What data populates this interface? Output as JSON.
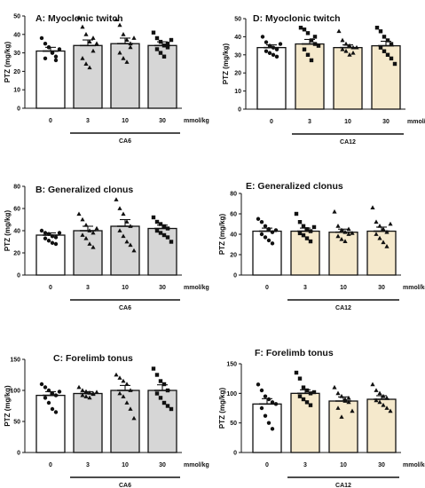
{
  "chart_data": [
    {
      "type": "bar",
      "panel": "A",
      "title": "A: Myoclonic twitch",
      "ylabel": "PTZ (mg/kg)",
      "categories": [
        "0",
        "3",
        "10",
        "30"
      ],
      "unit_label": "mmol/kg",
      "group_label": "CA6",
      "ylim": [
        0,
        50
      ],
      "yticks": [
        0,
        10,
        20,
        30,
        40,
        50
      ],
      "colors": [
        "#ffffff",
        "#d6d6d6",
        "#d6d6d6",
        "#d6d6d6"
      ],
      "markers": [
        "circle",
        "triangle",
        "triangle",
        "square"
      ],
      "values": [
        31,
        34,
        35,
        34
      ],
      "errors": [
        2,
        3,
        3,
        2
      ],
      "points": [
        [
          38,
          35,
          33,
          30,
          28,
          27,
          33,
          30,
          26,
          32
        ],
        [
          49,
          44,
          40,
          36,
          31,
          27,
          24,
          22,
          38,
          35
        ],
        [
          48,
          45,
          40,
          37,
          33,
          30,
          27,
          25,
          35,
          38
        ],
        [
          41,
          38,
          36,
          34,
          33,
          32,
          30,
          28,
          35,
          37
        ]
      ]
    },
    {
      "type": "bar",
      "panel": "B",
      "title": "B: Generalized clonus",
      "ylabel": "PTZ (mg/kg)",
      "categories": [
        "0",
        "3",
        "10",
        "30"
      ],
      "unit_label": "mmol/kg",
      "group_label": "CA6",
      "ylim": [
        0,
        80
      ],
      "yticks": [
        0,
        20,
        40,
        60,
        80
      ],
      "colors": [
        "#ffffff",
        "#d6d6d6",
        "#d6d6d6",
        "#d6d6d6"
      ],
      "markers": [
        "circle",
        "triangle",
        "triangle",
        "square"
      ],
      "values": [
        36,
        40,
        44,
        42
      ],
      "errors": [
        2,
        4,
        6,
        3
      ],
      "points": [
        [
          40,
          38,
          37,
          35,
          34,
          33,
          31,
          29,
          28,
          38
        ],
        [
          55,
          50,
          45,
          40,
          38,
          36,
          33,
          28,
          25,
          42
        ],
        [
          68,
          60,
          55,
          48,
          44,
          40,
          35,
          30,
          27,
          22
        ],
        [
          52,
          48,
          46,
          44,
          42,
          40,
          38,
          36,
          34,
          30
        ]
      ]
    },
    {
      "type": "bar",
      "panel": "C",
      "title": "C: Forelimb tonus",
      "ylabel": "PTZ (mg/kg)",
      "categories": [
        "0",
        "3",
        "10",
        "30"
      ],
      "unit_label": "mmol/kg",
      "group_label": "CA6",
      "ylim": [
        0,
        150
      ],
      "yticks": [
        0,
        50,
        100,
        150
      ],
      "colors": [
        "#ffffff",
        "#d6d6d6",
        "#d6d6d6",
        "#d6d6d6"
      ],
      "markers": [
        "circle",
        "triangle",
        "triangle",
        "square"
      ],
      "values": [
        92,
        95,
        100,
        100
      ],
      "errors": [
        6,
        3,
        8,
        9
      ],
      "points": [
        [
          110,
          105,
          100,
          95,
          92,
          88,
          80,
          70,
          65,
          98
        ],
        [
          105,
          100,
          98,
          96,
          94,
          92,
          90,
          88,
          95,
          97
        ],
        [
          125,
          120,
          115,
          110,
          100,
          95,
          90,
          80,
          70,
          55
        ],
        [
          135,
          125,
          115,
          110,
          100,
          95,
          88,
          80,
          75,
          70
        ]
      ]
    },
    {
      "type": "bar",
      "panel": "D",
      "title": "D: Myoclonic twitch",
      "ylabel": "PTZ (mg/kg)",
      "categories": [
        "0",
        "3",
        "10",
        "30"
      ],
      "unit_label": "mmol/kg",
      "group_label": "CA12",
      "ylim": [
        0,
        50
      ],
      "yticks": [
        0,
        10,
        20,
        30,
        40,
        50
      ],
      "colors": [
        "#ffffff",
        "#f5e9cc",
        "#f5e9cc",
        "#f5e9cc"
      ],
      "markers": [
        "circle",
        "square",
        "triangle",
        "square"
      ],
      "values": [
        34,
        36,
        34,
        35
      ],
      "errors": [
        1.5,
        2.5,
        1.5,
        2.5
      ],
      "points": [
        [
          40,
          37,
          35,
          34,
          33,
          32,
          31,
          30,
          29,
          36
        ],
        [
          45,
          44,
          42,
          38,
          36,
          33,
          30,
          27,
          40,
          35
        ],
        [
          43,
          38,
          36,
          35,
          34,
          33,
          32,
          30,
          31,
          34
        ],
        [
          45,
          43,
          40,
          38,
          36,
          34,
          32,
          30,
          28,
          25
        ]
      ]
    },
    {
      "type": "bar",
      "panel": "E",
      "title": "E: Generalized clonus",
      "ylabel": "PTZ (mg/kg)",
      "categories": [
        "0",
        "3",
        "10",
        "30"
      ],
      "unit_label": "mmol/kg",
      "group_label": "CA12",
      "ylim": [
        0,
        80
      ],
      "yticks": [
        0,
        20,
        40,
        60,
        80
      ],
      "colors": [
        "#ffffff",
        "#f5e9cc",
        "#f5e9cc",
        "#f5e9cc"
      ],
      "markers": [
        "circle",
        "square",
        "triangle",
        "triangle"
      ],
      "values": [
        43,
        43,
        42,
        43
      ],
      "errors": [
        3,
        3,
        3,
        4
      ],
      "points": [
        [
          55,
          52,
          48,
          45,
          42,
          40,
          37,
          34,
          31,
          44
        ],
        [
          60,
          52,
          48,
          45,
          43,
          41,
          39,
          36,
          33,
          47
        ],
        [
          62,
          48,
          44,
          42,
          40,
          38,
          35,
          33,
          45,
          41
        ],
        [
          66,
          52,
          48,
          45,
          42,
          40,
          36,
          32,
          28,
          50
        ]
      ]
    },
    {
      "type": "bar",
      "panel": "F",
      "title": "F: Forelimb tonus",
      "ylabel": "PTZ (mg/kg)",
      "categories": [
        "0",
        "3",
        "10",
        "30"
      ],
      "unit_label": "mmol/kg",
      "group_label": "CA12",
      "ylim": [
        0,
        150
      ],
      "yticks": [
        0,
        50,
        100,
        150
      ],
      "colors": [
        "#ffffff",
        "#f5e9cc",
        "#f5e9cc",
        "#f5e9cc"
      ],
      "markers": [
        "circle",
        "square",
        "triangle",
        "triangle"
      ],
      "values": [
        82,
        100,
        87,
        90
      ],
      "errors": [
        9,
        6,
        7,
        6
      ],
      "points": [
        [
          115,
          105,
          95,
          90,
          85,
          75,
          62,
          50,
          40,
          82
        ],
        [
          135,
          125,
          110,
          105,
          100,
          95,
          90,
          85,
          80,
          102
        ],
        [
          110,
          100,
          95,
          90,
          85,
          75,
          60,
          87,
          92,
          70
        ],
        [
          115,
          105,
          100,
          95,
          92,
          88,
          85,
          80,
          75,
          70
        ]
      ]
    }
  ]
}
